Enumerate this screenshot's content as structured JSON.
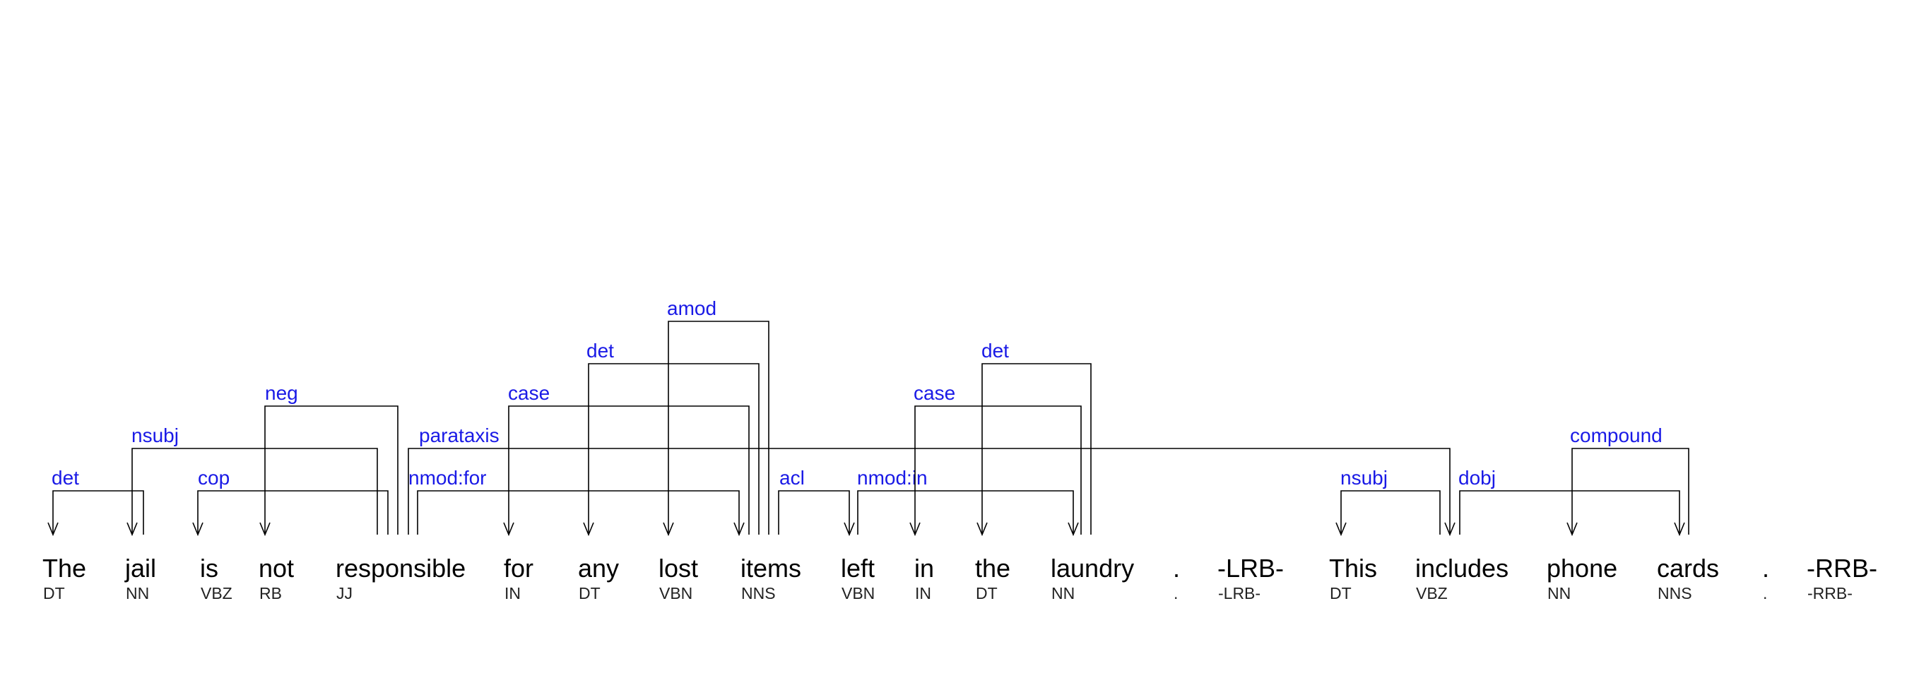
{
  "colors": {
    "label": "#1a1ae6",
    "line": "#000000",
    "text": "#000000"
  },
  "tokens": [
    {
      "word": "The",
      "tag": "DT"
    },
    {
      "word": "jail",
      "tag": "NN"
    },
    {
      "word": "is",
      "tag": "VBZ"
    },
    {
      "word": "not",
      "tag": "RB"
    },
    {
      "word": "responsible",
      "tag": "JJ"
    },
    {
      "word": "for",
      "tag": "IN"
    },
    {
      "word": "any",
      "tag": "DT"
    },
    {
      "word": "lost",
      "tag": "VBN"
    },
    {
      "word": "items",
      "tag": "NNS"
    },
    {
      "word": "left",
      "tag": "VBN"
    },
    {
      "word": "in",
      "tag": "IN"
    },
    {
      "word": "the",
      "tag": "DT"
    },
    {
      "word": "laundry",
      "tag": "NN"
    },
    {
      "word": ".",
      "tag": "."
    },
    {
      "word": "-LRB-",
      "tag": "-LRB-"
    },
    {
      "word": "This",
      "tag": "DT"
    },
    {
      "word": "includes",
      "tag": "VBZ"
    },
    {
      "word": "phone",
      "tag": "NN"
    },
    {
      "word": "cards",
      "tag": "NNS"
    },
    {
      "word": ".",
      "tag": "."
    },
    {
      "word": "-RRB-",
      "tag": "-RRB-"
    }
  ],
  "dependencies": [
    {
      "label": "det",
      "head": 1,
      "dep": 0
    },
    {
      "label": "nsubj",
      "head": 4,
      "dep": 1
    },
    {
      "label": "cop",
      "head": 4,
      "dep": 2
    },
    {
      "label": "neg",
      "head": 4,
      "dep": 3
    },
    {
      "label": "parataxis",
      "head": 4,
      "dep": 16
    },
    {
      "label": "nmod:for",
      "head": 4,
      "dep": 8
    },
    {
      "label": "case",
      "head": 8,
      "dep": 5
    },
    {
      "label": "det",
      "head": 8,
      "dep": 6
    },
    {
      "label": "amod",
      "head": 8,
      "dep": 7
    },
    {
      "label": "acl",
      "head": 8,
      "dep": 9
    },
    {
      "label": "nmod:in",
      "head": 9,
      "dep": 12
    },
    {
      "label": "case",
      "head": 12,
      "dep": 10
    },
    {
      "label": "det",
      "head": 12,
      "dep": 11
    },
    {
      "label": "nsubj",
      "head": 16,
      "dep": 15
    },
    {
      "label": "dobj",
      "head": 16,
      "dep": 18
    },
    {
      "label": "compound",
      "head": 18,
      "dep": 17
    }
  ]
}
